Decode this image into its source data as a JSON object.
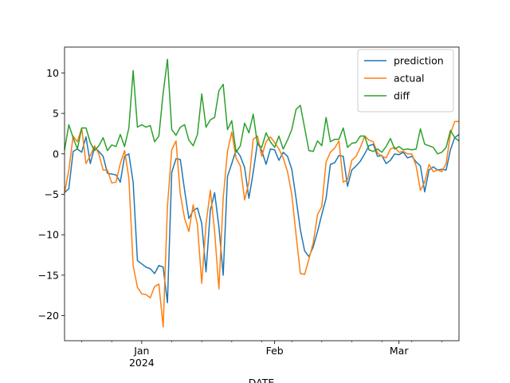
{
  "chart_data": {
    "type": "line",
    "x_label": "DATE",
    "x": [
      0,
      1,
      2,
      3,
      4,
      5,
      6,
      7,
      8,
      9,
      10,
      11,
      12,
      13,
      14,
      15,
      16,
      17,
      18,
      19,
      20,
      21,
      22,
      23,
      24,
      25,
      26,
      27,
      28,
      29,
      30,
      31,
      32,
      33,
      34,
      35,
      36,
      37,
      38,
      39,
      40,
      41,
      42,
      43,
      44,
      45,
      46,
      47,
      48,
      49,
      50,
      51,
      52,
      53,
      54,
      55,
      56,
      57,
      58,
      59,
      60,
      61,
      62,
      63,
      64,
      65,
      66,
      67,
      68,
      69,
      70,
      71,
      72,
      73,
      74,
      75,
      76,
      77,
      78,
      79,
      80,
      81,
      82,
      83,
      84,
      85,
      86,
      87,
      88,
      89,
      90,
      91,
      92
    ],
    "xlim": [
      0,
      92
    ],
    "xticks": [
      {
        "value": 18,
        "label": "Jan\n2024"
      },
      {
        "value": 49,
        "label": "Feb"
      },
      {
        "value": 78,
        "label": "Mar"
      }
    ],
    "xminorticks": [
      4,
      11,
      25,
      32,
      39,
      46,
      53,
      60,
      67,
      74,
      81,
      88
    ],
    "ylim": [
      -23.1,
      13.2
    ],
    "yticks": [
      {
        "value": -20,
        "label": "−20"
      },
      {
        "value": -15,
        "label": "−15"
      },
      {
        "value": -10,
        "label": "−10"
      },
      {
        "value": -5,
        "label": "−5"
      },
      0,
      5,
      10
    ],
    "legend": "upper right",
    "series": [
      {
        "name": "prediction",
        "color": "#1f77b4",
        "values": [
          -4.8,
          -4.3,
          0.3,
          0.6,
          0.2,
          2.1,
          -1.2,
          0.8,
          0.3,
          -0.3,
          -2.4,
          -2.5,
          -2.6,
          -3.5,
          -0.3,
          0,
          -3.5,
          -13.2,
          -13.6,
          -14,
          -14.2,
          -14.8,
          -13.8,
          -14,
          -18.4,
          -2.3,
          -0.6,
          -0.7,
          -4.5,
          -8,
          -7,
          -6.7,
          -8.6,
          -14.6,
          -7,
          -4.8,
          -9,
          -15,
          -2.8,
          -1.2,
          0.5,
          -0.3,
          -1.7,
          -5.5,
          -2.3,
          1.4,
          0.4,
          -1.3,
          0.6,
          0.5,
          -0.8,
          0.2,
          -0.3,
          -1.9,
          -5.5,
          -9.4,
          -12,
          -12.7,
          -11.5,
          -9.6,
          -7.5,
          -5.5,
          -1.3,
          -1.1,
          -0.2,
          -0.3,
          -4,
          -2,
          -1.5,
          -0.9,
          0,
          1,
          1.2,
          -0.3,
          -0.2,
          -1.2,
          -0.8,
          0,
          -0.1,
          0.2,
          -0.5,
          -0.3,
          -1,
          -1.5,
          -4.7,
          -2,
          -1.6,
          -2,
          -1.9,
          -2,
          0.5,
          2,
          2.4
        ]
      },
      {
        "name": "actual",
        "color": "#ff7f0e",
        "values": [
          -4.8,
          -2,
          2.2,
          1.5,
          3.2,
          -1.2,
          -0.2,
          1,
          0,
          -2,
          -2,
          -3.6,
          -3.5,
          -1.2,
          0.4,
          -3,
          -13.8,
          -16.5,
          -17.3,
          -17.4,
          -17.8,
          -16.4,
          -16.1,
          -21.4,
          -6.5,
          0.5,
          1.6,
          -5,
          -8,
          -9.6,
          -6.3,
          -8.8,
          -16,
          -8.7,
          -4.5,
          -9.6,
          -16.7,
          -5.5,
          0.3,
          2.7,
          -0.5,
          -1.5,
          -5.7,
          -3.5,
          1.8,
          2.2,
          -0.3,
          1.5,
          2.1,
          1.4,
          0.6,
          -0.5,
          -2.2,
          -5,
          -10,
          -14.8,
          -14.9,
          -13,
          -11,
          -7.5,
          -6.5,
          -1,
          0.2,
          0.7,
          1.6,
          -3.5,
          -3.2,
          -0.8,
          -0.3,
          0.8,
          2.2,
          1.7,
          1.5,
          0.1,
          -0.3,
          -0.5,
          0.6,
          0.8,
          0.2,
          0.3,
          0,
          0,
          -1.5,
          -4.5,
          -3.5,
          -1.3,
          -2.2,
          -2,
          -2.2,
          -1.2,
          2.5,
          4,
          4
        ]
      },
      {
        "name": "diff",
        "color": "#2ca02c",
        "values": [
          0.5,
          3.6,
          2,
          0.6,
          3.2,
          3.2,
          1.4,
          0.4,
          1,
          2,
          0.4,
          1.1,
          0.9,
          2.4,
          0.9,
          3.2,
          10.3,
          3.3,
          3.6,
          3.3,
          3.5,
          1.5,
          2.2,
          7.5,
          11.7,
          3,
          2.3,
          3.3,
          3.6,
          1.7,
          1,
          2.4,
          7.4,
          3.3,
          4.2,
          4.5,
          7.8,
          8.6,
          3,
          4.1,
          0.2,
          1,
          3.8,
          2.6,
          4.9,
          1.2,
          0.8,
          2.6,
          1.5,
          0.8,
          2.2,
          0.6,
          1.7,
          3,
          5.5,
          6,
          3.2,
          0.4,
          0.3,
          1.6,
          1,
          4.5,
          1.5,
          1.8,
          1.8,
          3.2,
          0.8,
          1.3,
          1.4,
          2.2,
          2.2,
          0.5,
          0.3,
          0.6,
          0.2,
          0.9,
          1.9,
          0.6,
          0.9,
          0.5,
          0.6,
          0.5,
          0.6,
          3.1,
          1.2,
          1,
          0.8,
          0,
          0.2,
          0.8,
          2.9,
          2,
          1.6
        ]
      }
    ]
  }
}
